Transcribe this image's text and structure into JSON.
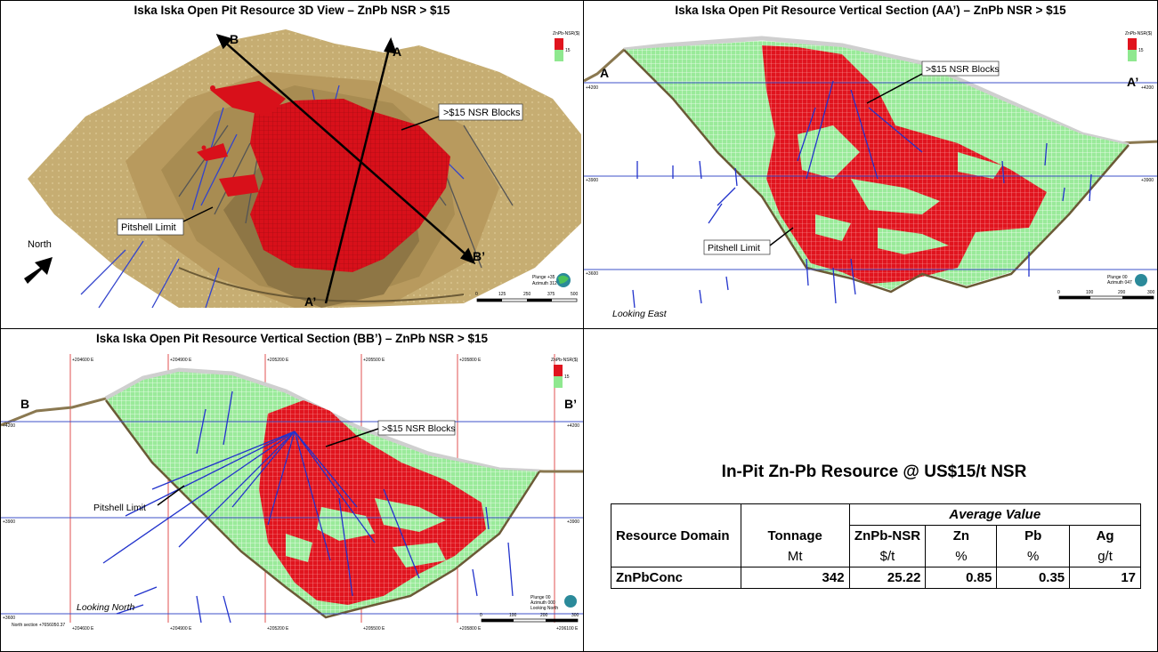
{
  "panels": {
    "view3d": {
      "title": "Iska Iska Open Pit Resource 3D View – ZnPb NSR > $15",
      "label_b": "B",
      "label_a": "A",
      "label_b_prime": "B’",
      "label_a_prime": "A’",
      "blocks_label": ">$15 NSR Blocks",
      "pitshell_label": "Pitshell Limit",
      "north_label": "North",
      "legend_title": "ZnPb-NSR($)",
      "legend_value": "15",
      "view_info": [
        "Plunge +35",
        "Azimuth 312"
      ],
      "scale_ticks": [
        "0",
        "125",
        "250",
        "375",
        "500"
      ]
    },
    "section_aa": {
      "title": "Iska Iska Open Pit Resource Vertical Section (AA’) – ZnPb NSR > $15",
      "label_left": "A",
      "label_right": "A’",
      "blocks_label": ">$15 NSR Blocks",
      "pitshell_label": "Pitshell Limit",
      "looking_label": "Looking East",
      "legend_title": "ZnPb-NSR($)",
      "legend_value": "15",
      "elev_labels": [
        "+4200",
        "+3900",
        "+3600"
      ],
      "view_info": [
        "Plunge 00",
        "Azimuth 047"
      ],
      "scale_ticks": [
        "0",
        "100",
        "200",
        "300"
      ]
    },
    "section_bb": {
      "title": "Iska Iska Open Pit Resource Vertical Section (BB’) – ZnPb NSR > $15",
      "label_left": "B",
      "label_right": "B’",
      "blocks_label": ">$15 NSR Blocks",
      "pitshell_label": "Pitshell Limit",
      "looking_label": "Looking North",
      "legend_title": "ZnPb-NSR($)",
      "legend_value": "15",
      "elev_labels": [
        "+4200",
        "+3900",
        "+3600"
      ],
      "easting_labels": [
        "+204600 E",
        "+204900 E",
        "+205200 E",
        "+205500 E",
        "+205800 E",
        "+206100 E"
      ],
      "section_note": "North section +7656050.37",
      "view_info": [
        "Plunge 00",
        "Azimuth 000",
        "Looking North"
      ],
      "scale_ticks": [
        "0",
        "100",
        "200",
        "300"
      ]
    }
  },
  "resource_table": {
    "title": "In-Pit Zn-Pb Resource @ US$15/t NSR",
    "average_value_label": "Average Value",
    "headers": [
      "Resource Domain",
      "Tonnage",
      "ZnPb-NSR",
      "Zn",
      "Pb",
      "Ag"
    ],
    "units": [
      "",
      "Mt",
      "$/t",
      "%",
      "%",
      "g/t"
    ],
    "row": [
      "ZnPbConc",
      "342",
      "25.22",
      "0.85",
      "0.35",
      "17"
    ]
  },
  "colors": {
    "high_grade": "#e0141e",
    "low_grade": "#8fe88f",
    "terrain": "#c8b27a",
    "terrain_dark": "#7a6a48",
    "drillhole": "#2233cc",
    "grid_line": "#3c50c8",
    "easting_line": "#e05050"
  }
}
